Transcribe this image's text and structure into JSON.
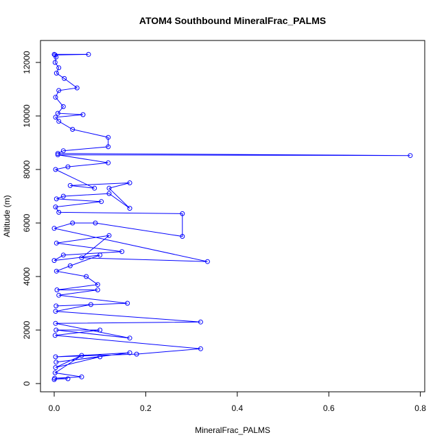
{
  "chart_data": {
    "type": "line",
    "title": "ATOM4 Southbound MineralFrac_PALMS",
    "xlabel": "MineralFrac_PALMS",
    "ylabel": "Altitude (m)",
    "xlim": [
      0,
      0.8
    ],
    "ylim": [
      0,
      12500
    ],
    "x_ticks": [
      0,
      0.2,
      0.4,
      0.6,
      0.8
    ],
    "x_tick_labels": [
      "0.0",
      "0.2",
      "0.4",
      "0.6",
      "0.8"
    ],
    "y_ticks": [
      0,
      2000,
      4000,
      6000,
      8000,
      10000,
      12000
    ],
    "y_tick_labels": [
      "0",
      "2000",
      "4000",
      "6000",
      "8000",
      "10000",
      "12000"
    ],
    "grid": false,
    "marker": "open-circle",
    "colors": {
      "series": "#0000ff",
      "axis": "#000000",
      "background": "#ffffff"
    },
    "series": [
      {
        "points": [
          [
            0.0,
            12300
          ],
          [
            0.075,
            12300
          ],
          [
            0.002,
            12280
          ],
          [
            0.004,
            12200
          ],
          [
            0.002,
            12000
          ],
          [
            0.01,
            11800
          ],
          [
            0.005,
            11600
          ],
          [
            0.022,
            11400
          ],
          [
            0.05,
            11050
          ],
          [
            0.01,
            10950
          ],
          [
            0.003,
            10700
          ],
          [
            0.02,
            10350
          ],
          [
            0.008,
            10100
          ],
          [
            0.063,
            10050
          ],
          [
            0.003,
            9950
          ],
          [
            0.01,
            9800
          ],
          [
            0.04,
            9500
          ],
          [
            0.118,
            9200
          ],
          [
            0.118,
            8850
          ],
          [
            0.02,
            8700
          ],
          [
            0.008,
            8600
          ],
          [
            0.778,
            8520
          ],
          [
            0.008,
            8550
          ],
          [
            0.118,
            8250
          ],
          [
            0.03,
            8100
          ],
          [
            0.003,
            8000
          ],
          [
            0.088,
            7300
          ],
          [
            0.035,
            7400
          ],
          [
            0.165,
            7500
          ],
          [
            0.12,
            7300
          ],
          [
            0.165,
            6550
          ],
          [
            0.12,
            7100
          ],
          [
            0.02,
            7000
          ],
          [
            0.005,
            6900
          ],
          [
            0.103,
            6800
          ],
          [
            0.003,
            6600
          ],
          [
            0.01,
            6400
          ],
          [
            0.28,
            6350
          ],
          [
            0.28,
            5500
          ],
          [
            0.09,
            6000
          ],
          [
            0.04,
            6000
          ],
          [
            0.0,
            5800
          ],
          [
            0.335,
            4560
          ],
          [
            0.06,
            4700
          ],
          [
            0.12,
            5530
          ],
          [
            0.005,
            5250
          ],
          [
            0.148,
            4930
          ],
          [
            0.02,
            4800
          ],
          [
            0.0,
            4600
          ],
          [
            0.1,
            4800
          ],
          [
            0.035,
            4400
          ],
          [
            0.005,
            4200
          ],
          [
            0.07,
            4000
          ],
          [
            0.095,
            3700
          ],
          [
            0.006,
            3500
          ],
          [
            0.095,
            3500
          ],
          [
            0.01,
            3300
          ],
          [
            0.16,
            3000
          ],
          [
            0.004,
            2900
          ],
          [
            0.08,
            2950
          ],
          [
            0.003,
            2700
          ],
          [
            0.32,
            2300
          ],
          [
            0.003,
            2250
          ],
          [
            0.165,
            1700
          ],
          [
            0.004,
            2000
          ],
          [
            0.1,
            2000
          ],
          [
            0.002,
            1800
          ],
          [
            0.32,
            1300
          ],
          [
            0.18,
            1100
          ],
          [
            0.003,
            1000
          ],
          [
            0.165,
            1150
          ],
          [
            0.004,
            800
          ],
          [
            0.1,
            1000
          ],
          [
            0.003,
            600
          ],
          [
            0.06,
            1050
          ],
          [
            0.002,
            400
          ],
          [
            0.06,
            250
          ],
          [
            0.001,
            200
          ],
          [
            0.03,
            180
          ],
          [
            0.0,
            150
          ]
        ]
      }
    ]
  }
}
